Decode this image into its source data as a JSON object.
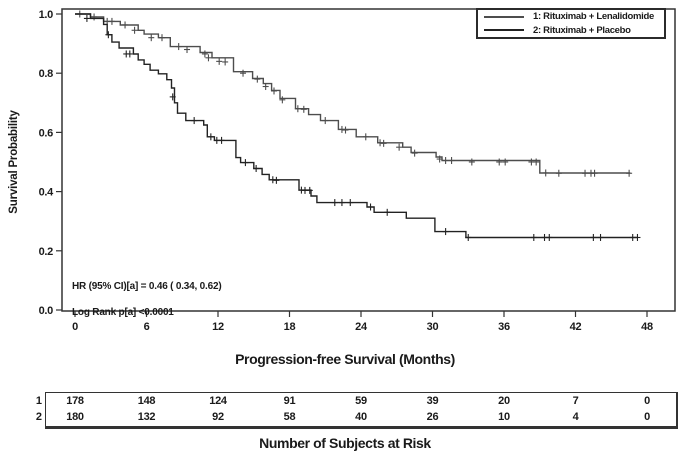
{
  "figure": {
    "y_axis_label": "Survival Probability",
    "x_axis_label": "Progression-free Survival (Months)",
    "annotation_line1": "HR (95% CI)[a] = 0.46 ( 0.34, 0.62)",
    "annotation_line2": "Log Rank p[a] <0.0001",
    "legend": [
      {
        "label": "1: Rituximab + Lenalidomide",
        "color": "#4d4d4d"
      },
      {
        "label": "2: Rituximab + Placebo",
        "color": "#222222"
      }
    ]
  },
  "chart_data": {
    "type": "line",
    "subtype": "kaplan-meier-step",
    "title": "",
    "xlabel": "Progression-free Survival (Months)",
    "ylabel": "Survival Probability",
    "xlim": [
      0,
      48
    ],
    "xticks": [
      0,
      6,
      12,
      18,
      24,
      30,
      36,
      42,
      48
    ],
    "ylim": [
      0.0,
      1.0
    ],
    "yticks": [
      0.0,
      0.2,
      0.4,
      0.6,
      0.8,
      1.0
    ],
    "grid": false,
    "legend_position": "top-right",
    "frame": true,
    "annotations": [
      "HR (95% CI)[a] = 0.46 ( 0.34, 0.62)",
      "Log Rank p[a] <0.0001"
    ],
    "series": [
      {
        "name": "1: Rituximab + Lenalidomide",
        "color": "#4d4d4d",
        "steps": [
          [
            0,
            1.0
          ],
          [
            1.3,
            0.99
          ],
          [
            2.4,
            0.975
          ],
          [
            3.8,
            0.963
          ],
          [
            5.3,
            0.945
          ],
          [
            5.8,
            0.932
          ],
          [
            7.0,
            0.92
          ],
          [
            8.0,
            0.89
          ],
          [
            10.5,
            0.87
          ],
          [
            11.5,
            0.852
          ],
          [
            13.3,
            0.805
          ],
          [
            14.9,
            0.782
          ],
          [
            15.8,
            0.765
          ],
          [
            16.5,
            0.742
          ],
          [
            17.2,
            0.715
          ],
          [
            18.5,
            0.68
          ],
          [
            19.6,
            0.66
          ],
          [
            20.6,
            0.64
          ],
          [
            22.1,
            0.61
          ],
          [
            23.6,
            0.585
          ],
          [
            25.4,
            0.565
          ],
          [
            27.5,
            0.55
          ],
          [
            28.2,
            0.532
          ],
          [
            30.3,
            0.517
          ],
          [
            30.8,
            0.505
          ],
          [
            39.0,
            0.463
          ],
          [
            46.6,
            0.463
          ]
        ],
        "censors": [
          [
            0.4,
            1.0
          ],
          [
            1.6,
            0.99
          ],
          [
            2.7,
            0.975
          ],
          [
            3.1,
            0.975
          ],
          [
            4.2,
            0.963
          ],
          [
            5.0,
            0.945
          ],
          [
            6.4,
            0.92
          ],
          [
            7.3,
            0.92
          ],
          [
            8.7,
            0.89
          ],
          [
            9.4,
            0.88
          ],
          [
            10.9,
            0.865
          ],
          [
            11.2,
            0.852
          ],
          [
            12.1,
            0.84
          ],
          [
            12.6,
            0.838
          ],
          [
            14.1,
            0.8
          ],
          [
            15.3,
            0.78
          ],
          [
            16.0,
            0.755
          ],
          [
            16.7,
            0.74
          ],
          [
            17.4,
            0.71
          ],
          [
            18.7,
            0.68
          ],
          [
            19.2,
            0.678
          ],
          [
            21.0,
            0.64
          ],
          [
            22.4,
            0.61
          ],
          [
            22.7,
            0.608
          ],
          [
            24.4,
            0.585
          ],
          [
            25.6,
            0.565
          ],
          [
            25.9,
            0.563
          ],
          [
            27.2,
            0.55
          ],
          [
            28.5,
            0.53
          ],
          [
            30.6,
            0.51
          ],
          [
            31.1,
            0.505
          ],
          [
            31.6,
            0.505
          ],
          [
            33.3,
            0.5
          ],
          [
            35.6,
            0.5
          ],
          [
            36.1,
            0.5
          ],
          [
            38.3,
            0.5
          ],
          [
            38.7,
            0.5
          ],
          [
            39.5,
            0.463
          ],
          [
            40.6,
            0.462
          ],
          [
            42.8,
            0.462
          ],
          [
            43.3,
            0.462
          ],
          [
            43.6,
            0.462
          ],
          [
            46.5,
            0.462
          ]
        ]
      },
      {
        "name": "2: Rituximab + Placebo",
        "color": "#222222",
        "steps": [
          [
            0,
            1.0
          ],
          [
            1.3,
            0.985
          ],
          [
            2.4,
            0.965
          ],
          [
            2.7,
            0.93
          ],
          [
            3.1,
            0.905
          ],
          [
            3.7,
            0.885
          ],
          [
            4.9,
            0.865
          ],
          [
            5.3,
            0.845
          ],
          [
            5.8,
            0.83
          ],
          [
            6.3,
            0.81
          ],
          [
            7.0,
            0.798
          ],
          [
            7.7,
            0.778
          ],
          [
            8.1,
            0.75
          ],
          [
            8.35,
            0.7
          ],
          [
            8.6,
            0.665
          ],
          [
            9.3,
            0.64
          ],
          [
            10.8,
            0.625
          ],
          [
            11.1,
            0.585
          ],
          [
            11.7,
            0.573
          ],
          [
            13.5,
            0.515
          ],
          [
            13.9,
            0.498
          ],
          [
            15.0,
            0.478
          ],
          [
            15.7,
            0.458
          ],
          [
            16.3,
            0.44
          ],
          [
            18.8,
            0.405
          ],
          [
            19.8,
            0.385
          ],
          [
            20.3,
            0.363
          ],
          [
            24.5,
            0.348
          ],
          [
            25.1,
            0.33
          ],
          [
            27.8,
            0.31
          ],
          [
            30.2,
            0.265
          ],
          [
            32.8,
            0.245
          ],
          [
            47.2,
            0.245
          ]
        ],
        "censors": [
          [
            1.0,
            0.985
          ],
          [
            2.8,
            0.93
          ],
          [
            4.3,
            0.865
          ],
          [
            4.6,
            0.865
          ],
          [
            8.2,
            0.72
          ],
          [
            10.0,
            0.64
          ],
          [
            11.4,
            0.585
          ],
          [
            11.9,
            0.573
          ],
          [
            12.3,
            0.573
          ],
          [
            14.3,
            0.498
          ],
          [
            15.2,
            0.478
          ],
          [
            16.6,
            0.44
          ],
          [
            16.9,
            0.438
          ],
          [
            19.0,
            0.405
          ],
          [
            19.3,
            0.404
          ],
          [
            19.7,
            0.404
          ],
          [
            21.8,
            0.363
          ],
          [
            22.4,
            0.363
          ],
          [
            23.1,
            0.363
          ],
          [
            24.8,
            0.348
          ],
          [
            26.2,
            0.33
          ],
          [
            31.1,
            0.265
          ],
          [
            33.0,
            0.245
          ],
          [
            38.5,
            0.245
          ],
          [
            39.4,
            0.245
          ],
          [
            39.8,
            0.245
          ],
          [
            43.5,
            0.245
          ],
          [
            44.1,
            0.245
          ],
          [
            46.8,
            0.245
          ],
          [
            47.2,
            0.245
          ]
        ]
      }
    ]
  },
  "risk_table": {
    "caption": "Number of Subjects at Risk",
    "time_points": [
      0,
      6,
      12,
      18,
      24,
      30,
      36,
      42,
      48
    ],
    "rows": [
      {
        "label": "1",
        "counts": [
          "178",
          "148",
          "124",
          "91",
          "59",
          "39",
          "20",
          "7",
          "0"
        ]
      },
      {
        "label": "2",
        "counts": [
          "180",
          "132",
          "92",
          "58",
          "40",
          "26",
          "10",
          "4",
          "0"
        ]
      }
    ]
  }
}
